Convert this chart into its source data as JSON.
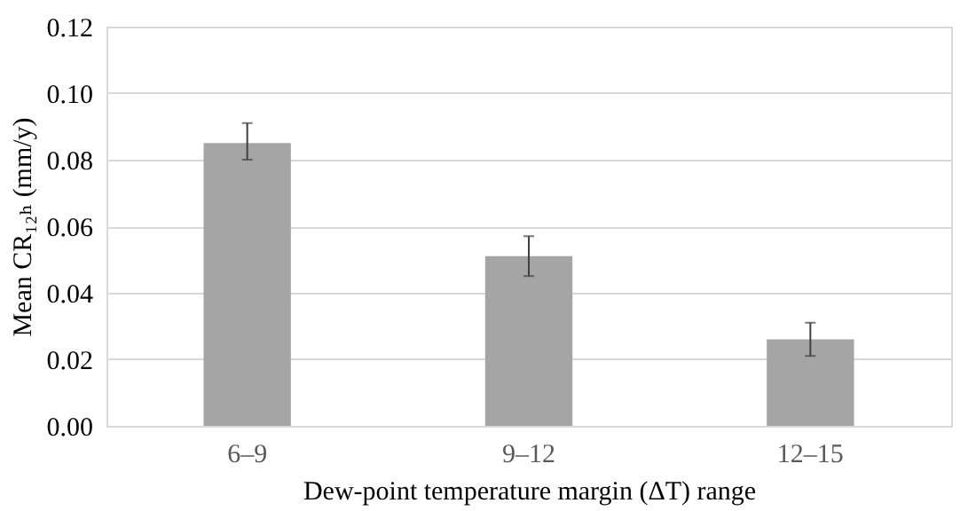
{
  "chart_data": {
    "type": "bar",
    "xlabel": "Dew-point temperature margin (ΔT) range",
    "ylabel": "Mean CR₁₂ₕ (mm/y)",
    "categories": [
      "6–9",
      "9–12",
      "12–15"
    ],
    "values": [
      0.085,
      0.051,
      0.026
    ],
    "errors": [
      [
        0.08,
        0.091
      ],
      [
        0.045,
        0.057
      ],
      [
        0.021,
        0.031
      ]
    ],
    "color": "#a5a5a5",
    "ylim": [
      0,
      0.12
    ],
    "yticks": [
      {
        "value": 0,
        "label": "0.00"
      },
      0.02,
      0.04,
      0.06,
      0.08,
      {
        "value": 0.1,
        "label": "0.10"
      },
      0.12
    ],
    "grid": "y"
  }
}
